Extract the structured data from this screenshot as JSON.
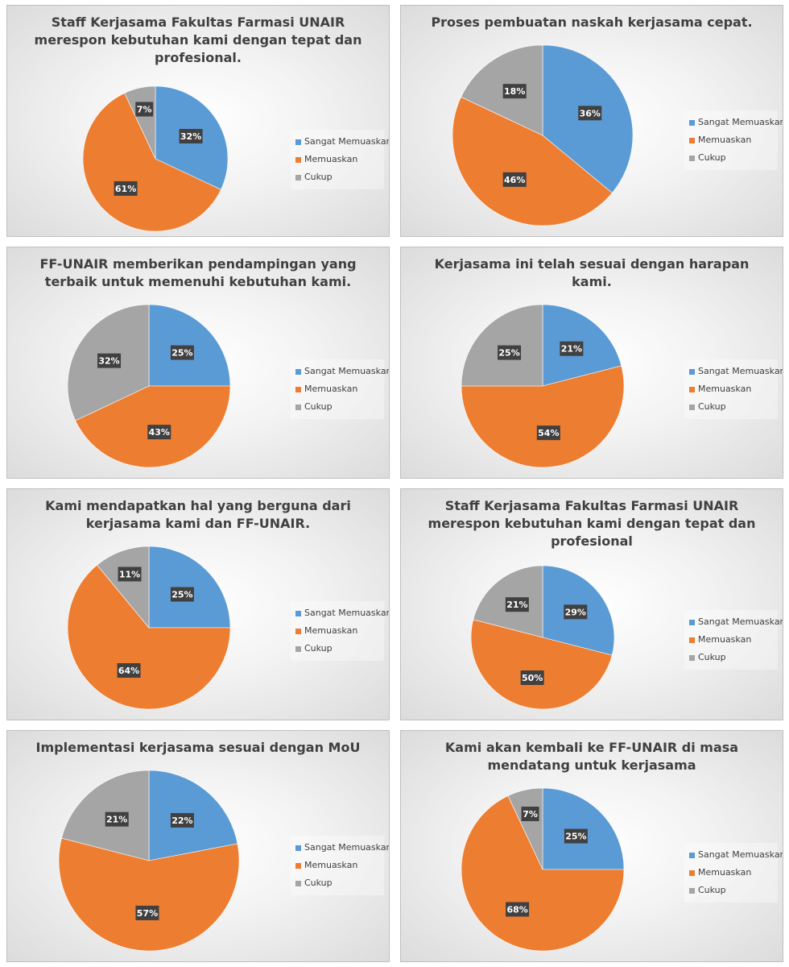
{
  "legend_labels": [
    "Sangat Memuaskan",
    "Memuaskan",
    "Cukup"
  ],
  "colors": {
    "sangat": "#5b9bd5",
    "memuaskan": "#ed7d31",
    "cukup": "#a5a5a5"
  },
  "chart_data": [
    {
      "type": "pie",
      "title": "Staff Kerjasama Fakultas Farmasi UNAIR merespon kebutuhan kami dengan tepat dan profesional.",
      "categories": [
        "Sangat Memuaskan",
        "Memuaskan",
        "Cukup"
      ],
      "values": [
        32,
        61,
        7
      ],
      "labels": [
        "32%",
        "61%",
        "7%"
      ],
      "legend_position": "right"
    },
    {
      "type": "pie",
      "title": "Proses pembuatan naskah kerjasama cepat.",
      "categories": [
        "Sangat Memuaskan",
        "Memuaskan",
        "Cukup"
      ],
      "values": [
        36,
        46,
        18
      ],
      "labels": [
        "36%",
        "46%",
        "18%"
      ],
      "legend_position": "right"
    },
    {
      "type": "pie",
      "title": "FF-UNAIR memberikan pendampingan yang terbaik untuk memenuhi kebutuhan kami.",
      "categories": [
        "Sangat Memuaskan",
        "Memuaskan",
        "Cukup"
      ],
      "values": [
        25,
        43,
        32
      ],
      "labels": [
        "25%",
        "43%",
        "32%"
      ],
      "legend_position": "right"
    },
    {
      "type": "pie",
      "title": "Kerjasama ini telah sesuai dengan harapan kami.",
      "categories": [
        "Sangat Memuaskan",
        "Memuaskan",
        "Cukup"
      ],
      "values": [
        21,
        54,
        25
      ],
      "labels": [
        "21%",
        "54%",
        "25%"
      ],
      "legend_position": "right"
    },
    {
      "type": "pie",
      "title": "Kami mendapatkan hal yang berguna dari kerjasama kami dan FF-UNAIR.",
      "categories": [
        "Sangat Memuaskan",
        "Memuaskan",
        "Cukup"
      ],
      "values": [
        25,
        64,
        11
      ],
      "labels": [
        "25%",
        "64%",
        "11%"
      ],
      "legend_position": "right"
    },
    {
      "type": "pie",
      "title": "Staff Kerjasama Fakultas Farmasi UNAIR merespon kebutuhan kami dengan tepat dan profesional",
      "categories": [
        "Sangat Memuaskan",
        "Memuaskan",
        "Cukup"
      ],
      "values": [
        29,
        50,
        21
      ],
      "labels": [
        "29%",
        "50%",
        "21%"
      ],
      "legend_position": "right"
    },
    {
      "type": "pie",
      "title": "Implementasi kerjasama sesuai dengan MoU",
      "categories": [
        "Sangat Memuaskan",
        "Memuaskan",
        "Cukup"
      ],
      "values": [
        22,
        57,
        21
      ],
      "labels": [
        "22%",
        "57%",
        "21%"
      ],
      "legend_position": "right"
    },
    {
      "type": "pie",
      "title": "Kami akan kembali ke FF-UNAIR di masa mendatang untuk kerjasama",
      "categories": [
        "Sangat Memuaskan",
        "Memuaskan",
        "Cukup"
      ],
      "values": [
        25,
        68,
        7
      ],
      "labels": [
        "25%",
        "68%",
        "7%"
      ],
      "legend_position": "right"
    }
  ]
}
